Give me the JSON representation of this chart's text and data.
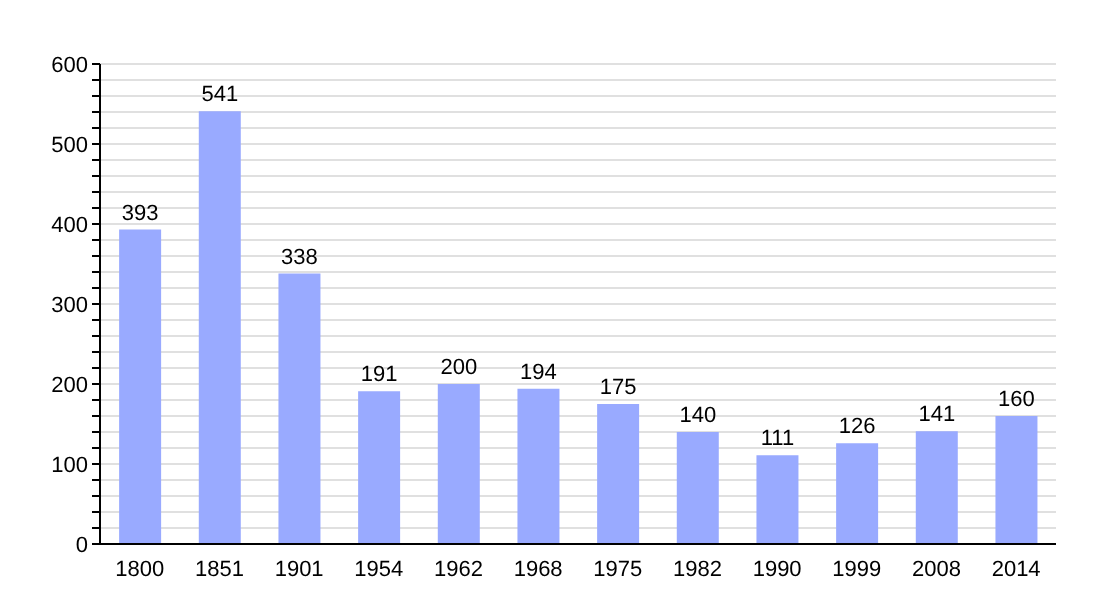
{
  "chart_data": {
    "type": "bar",
    "categories": [
      "1800",
      "1851",
      "1901",
      "1954",
      "1962",
      "1968",
      "1975",
      "1982",
      "1990",
      "1999",
      "2008",
      "2014"
    ],
    "values": [
      393,
      541,
      338,
      191,
      200,
      194,
      175,
      140,
      111,
      126,
      141,
      160
    ],
    "color": "#99aaff",
    "data_labels": true,
    "grid": "y",
    "ylim": [
      0,
      600
    ],
    "yticks": [
      0,
      {
        "value": 20,
        "label": null
      },
      {
        "value": 40,
        "label": null
      },
      {
        "value": 60,
        "label": null
      },
      {
        "value": 80,
        "label": null
      },
      100,
      {
        "value": 120,
        "label": null
      },
      {
        "value": 140,
        "label": null
      },
      {
        "value": 160,
        "label": null
      },
      {
        "value": 180,
        "label": null
      },
      200,
      {
        "value": 220,
        "label": null
      },
      {
        "value": 240,
        "label": null
      },
      {
        "value": 260,
        "label": null
      },
      {
        "value": 280,
        "label": null
      },
      300,
      {
        "value": 320,
        "label": null
      },
      {
        "value": 340,
        "label": null
      },
      {
        "value": 360,
        "label": null
      },
      {
        "value": 380,
        "label": null
      },
      400,
      {
        "value": 420,
        "label": null
      },
      {
        "value": 440,
        "label": null
      },
      {
        "value": 460,
        "label": null
      },
      {
        "value": 480,
        "label": null
      },
      500,
      {
        "value": 520,
        "label": null
      },
      {
        "value": 540,
        "label": null
      },
      {
        "value": 560,
        "label": null
      },
      {
        "value": 580,
        "label": null
      },
      600
    ]
  }
}
